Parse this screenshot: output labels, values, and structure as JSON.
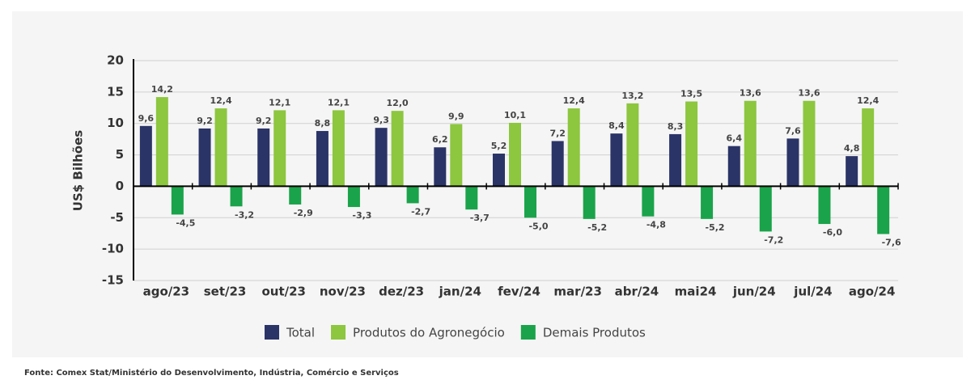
{
  "chart_data": {
    "type": "bar",
    "y_label": "US$ Bilhões",
    "source": "Fonte:  Comex Stat/Ministério do Desenvolvimento, Indústria, Comércio e Serviços",
    "categories": [
      "ago/23",
      "set/23",
      "out/23",
      "nov/23",
      "dez/23",
      "jan/24",
      "fev/24",
      "mar/23",
      "abr/24",
      "mai24",
      "jun/24",
      "jul/24",
      "ago/24"
    ],
    "series": [
      {
        "name": "Total",
        "color": "#2b3467",
        "values": [
          9.6,
          9.2,
          9.2,
          8.8,
          9.3,
          6.2,
          5.2,
          7.2,
          8.4,
          8.3,
          6.4,
          7.6,
          4.8
        ],
        "value_labels": [
          "9,6",
          "9,2",
          "9,2",
          "8,8",
          "9,3",
          "6,2",
          "5,2",
          "7,2",
          "8,4",
          "8,3",
          "6,4",
          "7,6",
          "4,8"
        ]
      },
      {
        "name": "Produtos do Agronegócio",
        "color": "#8dc63f",
        "values": [
          14.2,
          12.4,
          12.1,
          12.1,
          12.0,
          9.9,
          10.1,
          12.4,
          13.2,
          13.5,
          13.6,
          13.6,
          12.4
        ],
        "value_labels": [
          "14,2",
          "12,4",
          "12,1",
          "12,1",
          "12,0",
          "9,9",
          "10,1",
          "12,4",
          "13,2",
          "13,5",
          "13,6",
          "13,6",
          "12,4"
        ]
      },
      {
        "name": "Demais Produtos",
        "color": "#1aa34a",
        "values": [
          -4.5,
          -3.2,
          -2.9,
          -3.3,
          -2.7,
          -3.7,
          -5.0,
          -5.2,
          -4.8,
          -5.2,
          -7.2,
          -6.0,
          -7.6
        ],
        "value_labels": [
          "-4,5",
          "-3,2",
          "-2,9",
          "-3,3",
          "-2,7",
          "-3,7",
          "-5,0",
          "-5,2",
          "-4,8",
          "-5,2",
          "-7,2",
          "-6,0",
          "-7,6"
        ]
      }
    ],
    "ylim": [
      -15,
      20
    ],
    "yticks": [
      20,
      15,
      10,
      5,
      0,
      -5,
      -10,
      -15
    ],
    "grid": true,
    "legend": "bottom"
  }
}
